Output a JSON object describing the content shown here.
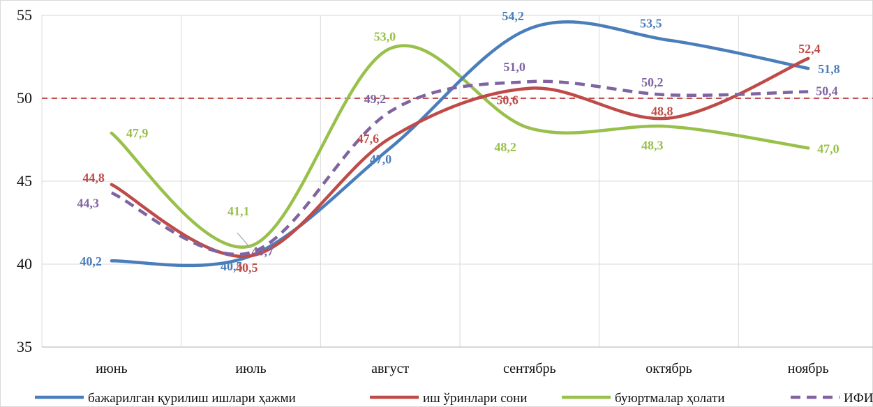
{
  "chart_data": {
    "type": "line",
    "categories": [
      "июнь",
      "июль",
      "август",
      "сентябрь",
      "октябрь",
      "ноябрь"
    ],
    "ylim": [
      35,
      55
    ],
    "yticks": [
      35,
      40,
      45,
      50,
      55
    ],
    "grid": true,
    "reference_line": {
      "value": 50,
      "color": "#c0504d",
      "style": "dashed"
    },
    "legend_position": "bottom",
    "series": [
      {
        "name": "бажарилган қурилиш ишлари ҳажми",
        "values": [
          40.2,
          40.5,
          47.0,
          54.2,
          53.5,
          51.8
        ],
        "labels": [
          "40,2",
          "40,5",
          "47,0",
          "54,2",
          "53,5",
          "51,8"
        ],
        "color": "#4a7ebb",
        "dashed": false
      },
      {
        "name": "иш ўринлари сони",
        "values": [
          44.8,
          40.5,
          47.6,
          50.6,
          48.8,
          52.4
        ],
        "labels": [
          "44,8",
          "40,5",
          "47,6",
          "50,6",
          "48,8",
          "52,4"
        ],
        "color": "#be4b48",
        "dashed": false
      },
      {
        "name": "буюртмалар ҳолати",
        "values": [
          47.9,
          41.1,
          53.0,
          48.2,
          48.3,
          47.0
        ],
        "labels": [
          "47,9",
          "41,1",
          "53,0",
          "48,2",
          "48,3",
          "47,0"
        ],
        "color": "#98c04a",
        "dashed": false
      },
      {
        "name": "ИФИ",
        "values": [
          44.3,
          40.7,
          49.2,
          51.0,
          50.2,
          50.4
        ],
        "labels": [
          "44,3",
          "40,7",
          "49,2",
          "51,0",
          "50,2",
          "50,4"
        ],
        "color": "#8064a2",
        "dashed": true
      }
    ]
  }
}
